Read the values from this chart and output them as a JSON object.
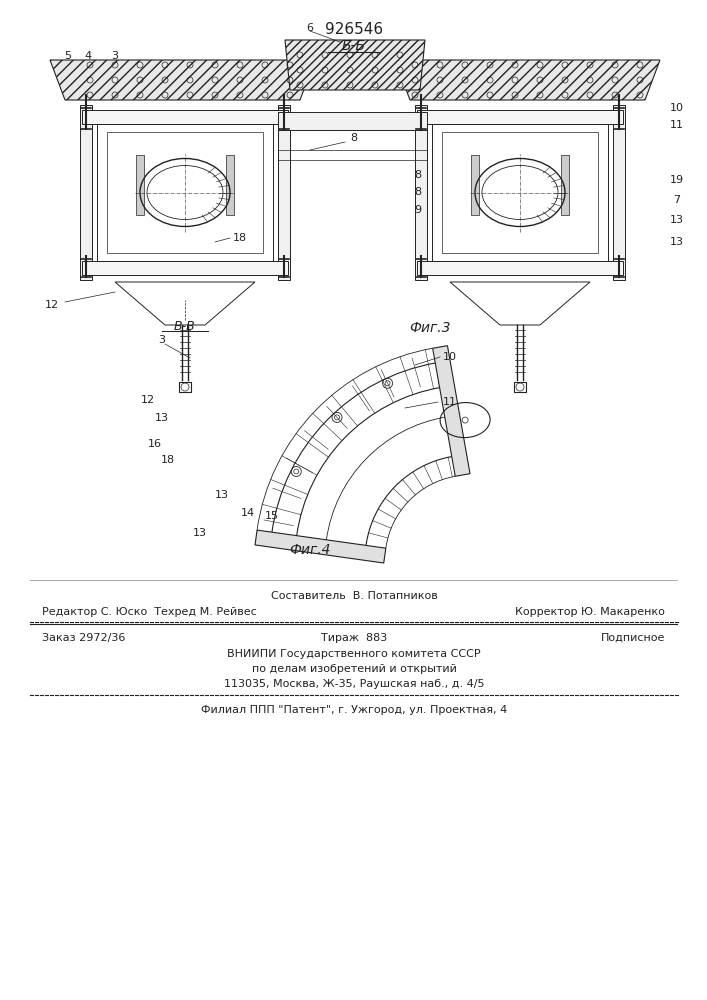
{
  "patent_number": "926546",
  "fig3_label": "Фиг.3",
  "fig4_label": "Фиг.4",
  "section_bb": "Б-Б",
  "section_vv": "В-В",
  "footer_line1": "Составитель  В. Потапников",
  "footer_line2_left": "Редактор С. Юско  Техред М. Рейвес",
  "footer_line2_right": "Корректор Ю. Макаренко",
  "footer_line3_left": "Заказ 2972/36",
  "footer_line3_mid": "Тираж  883",
  "footer_line3_right": "Подписное",
  "footer_line4": "ВНИИПИ Государственного комитета СССР",
  "footer_line5": "по делам изобретений и открытий",
  "footer_line6": "113035, Москва, Ж-35, Раушская наб., д. 4/5",
  "footer_line7": "Филиал ППП \"Патент\", г. Ужгород, ул. Проектная, 4",
  "bg_color": "#ffffff",
  "line_color": "#222222"
}
